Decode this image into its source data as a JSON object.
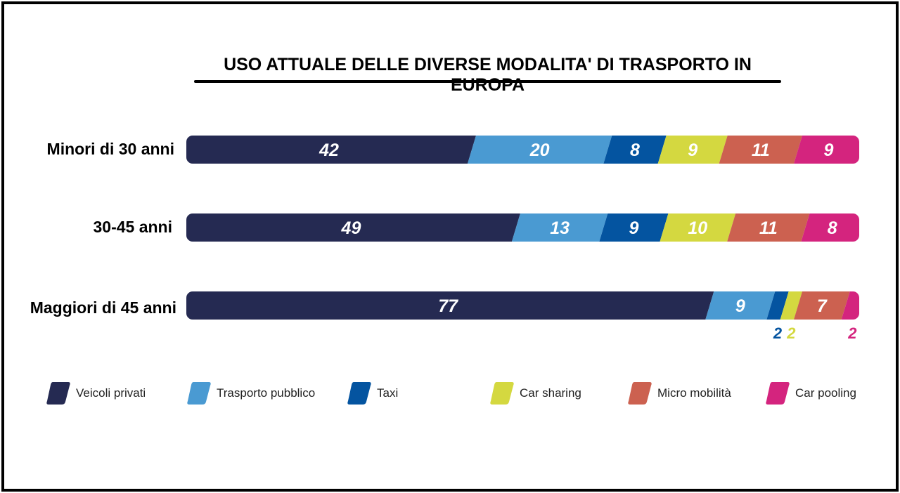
{
  "chart_data": {
    "type": "bar",
    "orientation": "horizontal-stacked",
    "title": "USO ATTUALE DELLE DIVERSE MODALITA' DI TRASPORTO IN EUROPA",
    "categories": [
      "Minori di 30 anni",
      "30-45 anni",
      "Maggiori di 45 anni"
    ],
    "series": [
      {
        "name": "Veicoli privati",
        "color": "#252a52",
        "values": [
          42,
          49,
          77
        ]
      },
      {
        "name": "Trasporto pubblico",
        "color": "#4a9ad2",
        "values": [
          20,
          13,
          9
        ]
      },
      {
        "name": "Taxi",
        "color": "#0454a0",
        "values": [
          8,
          9,
          2
        ]
      },
      {
        "name": "Car sharing",
        "color": "#d4d840",
        "values": [
          9,
          10,
          2
        ]
      },
      {
        "name": "Micro mobilità",
        "color": "#cc6150",
        "values": [
          11,
          11,
          7
        ]
      },
      {
        "name": "Car pooling",
        "color": "#d4247e",
        "values": [
          9,
          8,
          2
        ]
      }
    ],
    "legend": "bottom",
    "grid": false
  }
}
